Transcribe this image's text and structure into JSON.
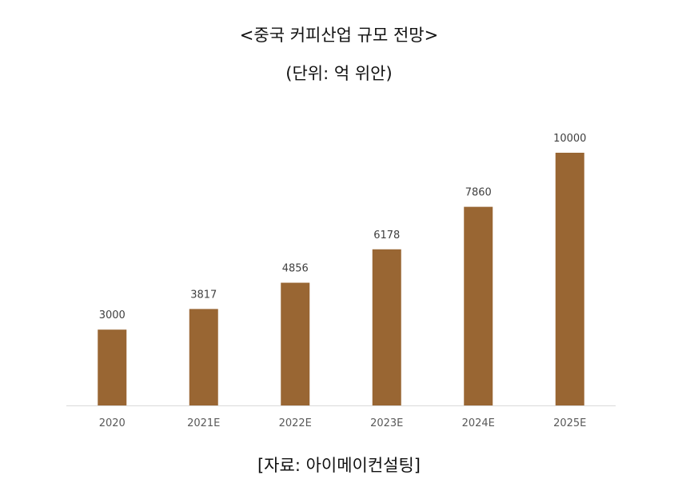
{
  "chart_data": {
    "type": "bar",
    "title": "<중국 커피산업 규모 전망>",
    "subtitle": "(단위: 억 위안)",
    "categories": [
      "2020",
      "2021E",
      "2022E",
      "2023E",
      "2024E",
      "2025E"
    ],
    "values": [
      3000,
      3817,
      4856,
      6178,
      7860,
      10000
    ],
    "data_labels": [
      "3000",
      "3817",
      "4856",
      "6178",
      "7860",
      "10000"
    ],
    "xlabel": "",
    "ylabel": "",
    "ylim": [
      0,
      10000
    ],
    "grid": false,
    "legend": "none",
    "bar_color": "#996633",
    "axis_color": "#d9d9d9"
  },
  "source": "[자료: 아이메이컨설팅]"
}
